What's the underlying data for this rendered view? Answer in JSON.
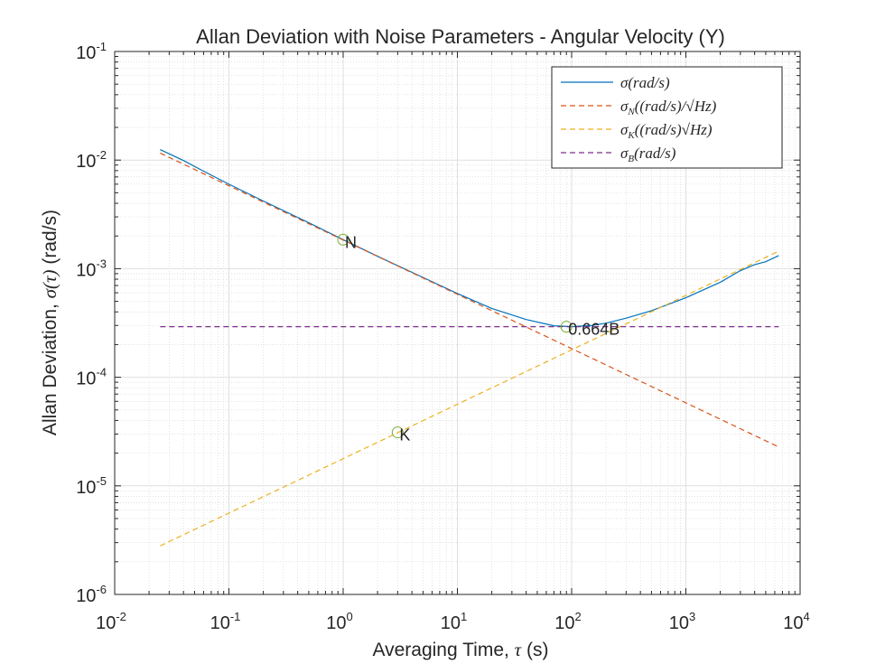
{
  "chart_data": {
    "type": "line",
    "title": "Allan Deviation with Noise Parameters - Angular Velocity (Y)",
    "xlabel": {
      "prefix": "Averaging Time, ",
      "symbol": "τ",
      "suffix": " (s)"
    },
    "ylabel": {
      "prefix": "Allan Deviation, ",
      "symbol": "σ(τ)",
      "suffix": " (rad/s)"
    },
    "xscale": "log",
    "yscale": "log",
    "xlim": [
      0.01,
      10000
    ],
    "ylim": [
      1e-06,
      0.1
    ],
    "grid": true,
    "x_ticks": [
      {
        "base": "10",
        "exp": "-2"
      },
      {
        "base": "10",
        "exp": "-1"
      },
      {
        "base": "10",
        "exp": "0"
      },
      {
        "base": "10",
        "exp": "1"
      },
      {
        "base": "10",
        "exp": "2"
      },
      {
        "base": "10",
        "exp": "3"
      },
      {
        "base": "10",
        "exp": "4"
      }
    ],
    "y_ticks": [
      {
        "base": "10",
        "exp": "-6"
      },
      {
        "base": "10",
        "exp": "-5"
      },
      {
        "base": "10",
        "exp": "-4"
      },
      {
        "base": "10",
        "exp": "-3"
      },
      {
        "base": "10",
        "exp": "-2"
      },
      {
        "base": "10",
        "exp": "-1"
      }
    ],
    "legend_position": "top-right",
    "series": [
      {
        "name": "σ(rad/s)",
        "color": "#0072BD",
        "style": "solid",
        "points": [
          [
            0.025,
            0.0125
          ],
          [
            0.04,
            0.0099
          ],
          [
            0.06,
            0.0079
          ],
          [
            0.1,
            0.006
          ],
          [
            0.2,
            0.0042
          ],
          [
            0.5,
            0.00265
          ],
          [
            1,
            0.00185
          ],
          [
            2,
            0.0013
          ],
          [
            5,
            0.00083
          ],
          [
            10,
            0.00059
          ],
          [
            20,
            0.00043
          ],
          [
            40,
            0.00034
          ],
          [
            70,
            0.000298
          ],
          [
            100,
            0.000292
          ],
          [
            150,
            0.0003
          ],
          [
            200,
            0.000315
          ],
          [
            300,
            0.00035
          ],
          [
            500,
            0.00041
          ],
          [
            1000,
            0.00054
          ],
          [
            2000,
            0.00075
          ],
          [
            3000,
            0.00096
          ],
          [
            4000,
            0.00109
          ],
          [
            5000,
            0.00116
          ],
          [
            6500,
            0.00132
          ]
        ]
      },
      {
        "name": "σN((rad/s)/√Hz)",
        "color": "#D95319",
        "style": "dashed",
        "points": [
          [
            0.025,
            0.0116
          ],
          [
            6500,
            2.28e-05
          ]
        ]
      },
      {
        "name": "σK((rad/s)√Hz)",
        "color": "#EDB120",
        "style": "dashed",
        "points": [
          [
            0.025,
            2.8e-06
          ],
          [
            6500,
            0.00145
          ]
        ]
      },
      {
        "name": "σB(rad/s)",
        "color": "#7E2F8E",
        "style": "dashed",
        "points": [
          [
            0.025,
            0.000292
          ],
          [
            6500,
            0.000292
          ]
        ]
      }
    ],
    "legend": [
      {
        "sym": "σ",
        "sub": "",
        "rest": "(rad/s)",
        "color": "#0072BD",
        "dash": false
      },
      {
        "sym": "σ",
        "sub": "N",
        "rest": "((rad/s)/√Hz)",
        "color": "#D95319",
        "dash": true
      },
      {
        "sym": "σ",
        "sub": "K",
        "rest": "((rad/s)√Hz)",
        "color": "#EDB120",
        "dash": true
      },
      {
        "sym": "σ",
        "sub": "B",
        "rest": "(rad/s)",
        "color": "#7E2F8E",
        "dash": true
      }
    ],
    "annotations": [
      {
        "label": "N",
        "x": 1,
        "y": 0.00185
      },
      {
        "label": "K",
        "x": 3,
        "y": 3.11e-05
      },
      {
        "label": "0.664B",
        "x": 90,
        "y": 0.000292
      }
    ],
    "marker_color": "#77AC30"
  }
}
